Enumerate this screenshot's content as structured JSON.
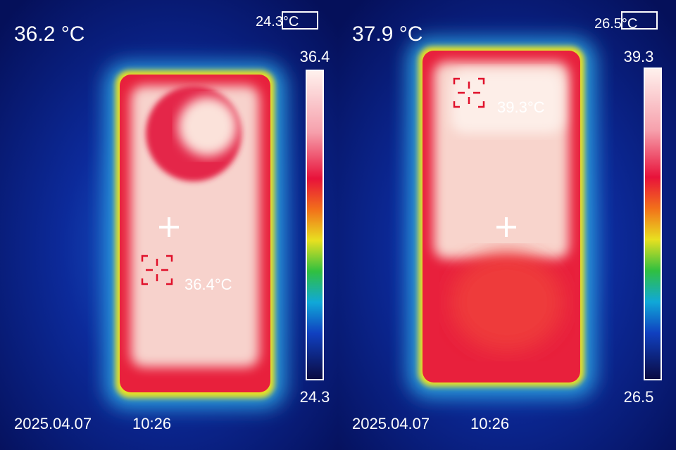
{
  "panels": [
    {
      "center_temp": "36.2 °C",
      "ambient_temp": "24.3°C",
      "scale_max": "36.4",
      "scale_min": "24.3",
      "spot_label": "36.4°C",
      "date": "2025.04.07",
      "time": "10:26"
    },
    {
      "center_temp": "37.9 °C",
      "ambient_temp": "26.5°C",
      "scale_max": "39.3",
      "scale_min": "26.5",
      "spot_label": "39.3°C",
      "date": "2025.04.07",
      "time": "10:26"
    }
  ]
}
